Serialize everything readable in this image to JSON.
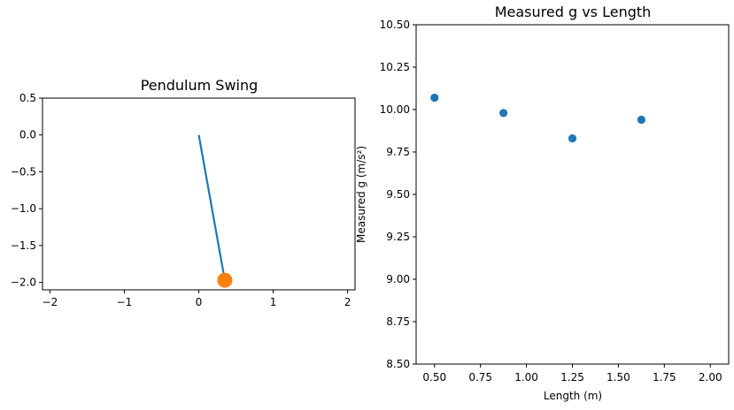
{
  "colors": {
    "blue": "#1f77b4",
    "orange": "#ff7f0e",
    "axis": "#000000",
    "background": "#ffffff"
  },
  "chart_data": [
    {
      "type": "line",
      "title": "Pendulum Swing",
      "xlabel": "",
      "ylabel": "",
      "xlim": [
        -2.1,
        2.1
      ],
      "ylim": [
        -2.1,
        0.5
      ],
      "xticks": [
        -2,
        -1,
        0,
        1,
        2
      ],
      "xtick_labels": [
        "−2",
        "−1",
        "0",
        "1",
        "2"
      ],
      "yticks": [
        0.5,
        0.0,
        -0.5,
        -1.0,
        -1.5,
        -2.0
      ],
      "ytick_labels": [
        "0.5",
        "0.0",
        "−0.5",
        "−1.0",
        "−1.5",
        "−2.0"
      ],
      "rod": {
        "x": [
          0,
          0.35
        ],
        "y": [
          0,
          -1.97
        ],
        "color": "#1f77b4"
      },
      "bob": {
        "x": 0.35,
        "y": -1.97,
        "color": "#ff7f0e"
      },
      "grid": false
    },
    {
      "type": "scatter",
      "title": "Measured g vs Length",
      "xlabel": "Length (m)",
      "ylabel": "Measured g (m/s²)",
      "xlim": [
        0.4,
        2.1
      ],
      "ylim": [
        8.5,
        10.5
      ],
      "xticks": [
        0.5,
        0.75,
        1.0,
        1.25,
        1.5,
        1.75,
        2.0
      ],
      "xtick_labels": [
        "0.50",
        "0.75",
        "1.00",
        "1.25",
        "1.50",
        "1.75",
        "2.00"
      ],
      "yticks": [
        8.5,
        8.75,
        9.0,
        9.25,
        9.5,
        9.75,
        10.0,
        10.25,
        10.5
      ],
      "ytick_labels": [
        "8.50",
        "8.75",
        "9.00",
        "9.25",
        "9.50",
        "9.75",
        "10.00",
        "10.25",
        "10.50"
      ],
      "series": [
        {
          "x": [
            0.5,
            0.875,
            1.25,
            1.625
          ],
          "y": [
            10.07,
            9.98,
            9.83,
            9.94
          ],
          "color": "#1f77b4"
        }
      ],
      "grid": false
    }
  ]
}
